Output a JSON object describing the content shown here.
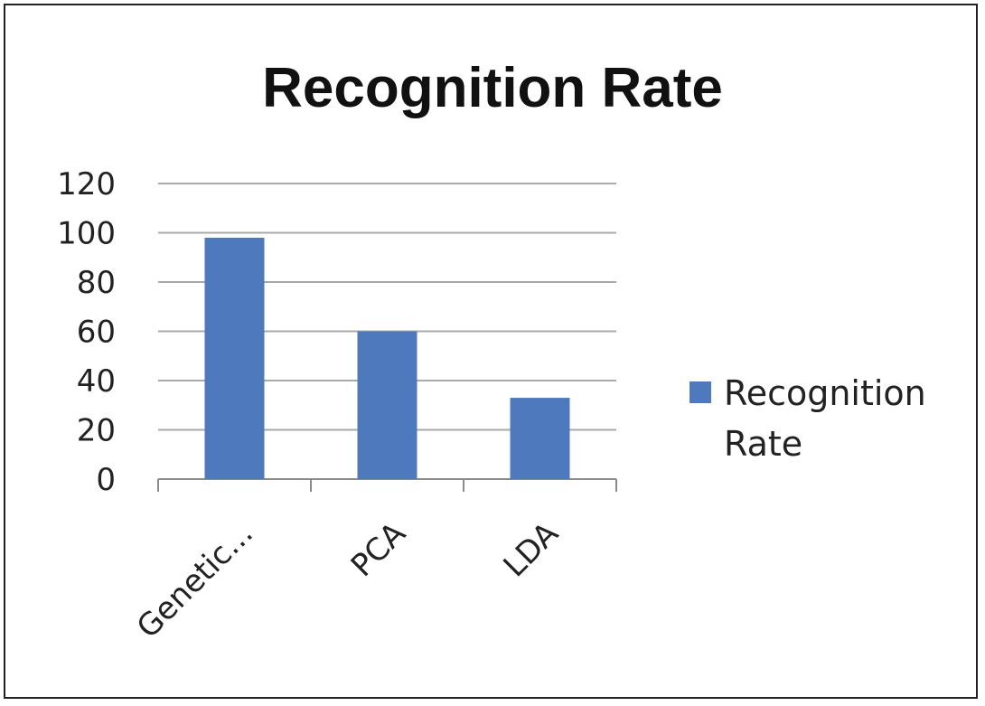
{
  "chart_data": {
    "type": "bar",
    "title": "Recognition Rate",
    "categories": [
      "Genetic...",
      "PCA",
      "LDA"
    ],
    "series": [
      {
        "name": "Recognition Rate",
        "values": [
          98,
          60,
          33
        ]
      }
    ],
    "ylim": [
      0,
      120
    ],
    "yticks": [
      "0",
      "20",
      "40",
      "60",
      "80",
      "100",
      "120"
    ],
    "grid": true,
    "legend": {
      "placement": "right",
      "lines": [
        "Recognition",
        "Rate"
      ]
    },
    "bar_color": "#4f79bd"
  }
}
